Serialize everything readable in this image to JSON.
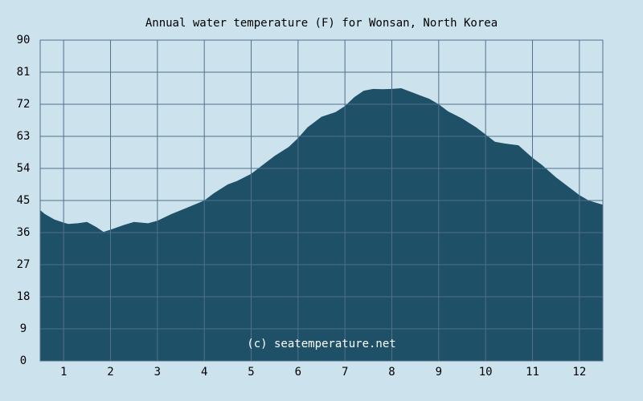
{
  "chart_data": {
    "type": "area",
    "title": "Annual water temperature (F) for Wonsan, North Korea",
    "watermark": "(c) seatemperature.net",
    "xlabel": "",
    "ylabel": "",
    "x_ticks": [
      "1",
      "2",
      "3",
      "4",
      "5",
      "6",
      "7",
      "8",
      "9",
      "10",
      "11",
      "12"
    ],
    "y_ticks": [
      "0",
      "9",
      "18",
      "27",
      "36",
      "45",
      "54",
      "63",
      "72",
      "81",
      "90"
    ],
    "xlim": [
      0.5,
      12.5
    ],
    "ylim": [
      0,
      90
    ],
    "grid": true,
    "series": [
      {
        "x": [
          0.5,
          0.6,
          0.8,
          1.0,
          1.1,
          1.3,
          1.5,
          1.7,
          1.85,
          2.0,
          2.3,
          2.5,
          2.8,
          3.0,
          3.3,
          3.6,
          4.0,
          4.2,
          4.5,
          4.7,
          5.0,
          5.2,
          5.5,
          5.8,
          6.0,
          6.2,
          6.5,
          6.8,
          7.0,
          7.2,
          7.4,
          7.6,
          7.8,
          8.0,
          8.2,
          8.4,
          8.6,
          8.8,
          9.0,
          9.2,
          9.5,
          9.8,
          10.0,
          10.2,
          10.4,
          10.7,
          11.0,
          11.2,
          11.5,
          11.8,
          12.0,
          12.2,
          12.5
        ],
        "y": [
          42.3,
          41.2,
          39.7,
          38.8,
          38.4,
          38.6,
          39.0,
          37.5,
          36.2,
          36.8,
          38.2,
          39.0,
          38.6,
          39.3,
          41.2,
          42.8,
          45.0,
          47.0,
          49.5,
          50.5,
          52.5,
          54.5,
          57.5,
          60.0,
          62.5,
          65.5,
          68.5,
          69.8,
          71.5,
          74.0,
          75.8,
          76.3,
          76.2,
          76.3,
          76.5,
          75.5,
          74.5,
          73.5,
          72.0,
          70.0,
          68.0,
          65.5,
          63.5,
          61.5,
          61.0,
          60.5,
          57.0,
          55.0,
          51.5,
          48.5,
          46.5,
          45.0,
          43.8
        ]
      }
    ],
    "colors": {
      "background": "#cce3ee",
      "plot_background": "#cce3ee",
      "fill": "#1e5068",
      "grid": "#52708a",
      "border": "#52708a",
      "text": "#000000",
      "watermark_text": "#ffffff"
    }
  }
}
